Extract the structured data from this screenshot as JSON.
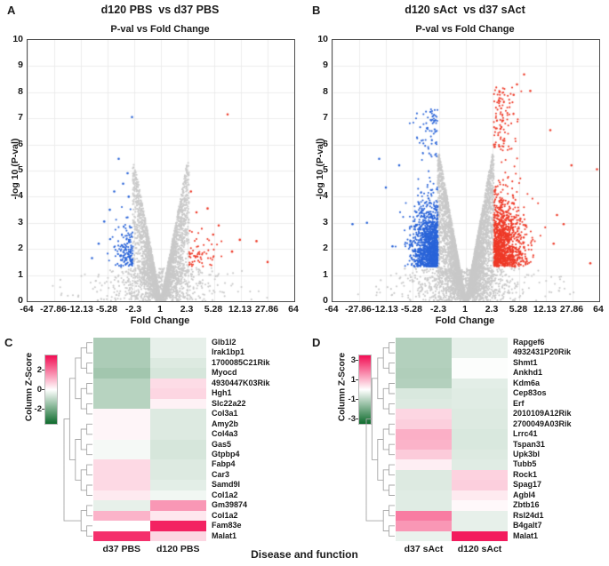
{
  "caption": "Disease and function",
  "colors": {
    "up_points": "#ee3a28",
    "down_points": "#2a64d8",
    "nonsig_points": "#c9c9c9",
    "grid": "#ececec",
    "axis": "#4d4d4d",
    "heat_positive": "#f20d53",
    "heat_zero": "#ffffff",
    "heat_negative": "#0e6b2d",
    "dendrogram": "#a6a6a6"
  },
  "chart_data": [
    {
      "type": "scatter",
      "panel_letter": "A",
      "title": "d120 PBS  vs d37 PBS",
      "subtitle": "P-val vs Fold Change",
      "xlabel": "Fold Change",
      "ylabel": "-log 10 (P-val)",
      "x_tick_labels": [
        "-64",
        "-27.86",
        "-12.13",
        "-5.28",
        "-2.3",
        "1",
        "2.3",
        "5.28",
        "12.13",
        "27.86",
        "64"
      ],
      "x_axis_note": "symmetric log2 fold-change scale, log2 range -6..6",
      "y_ticks": [
        0,
        1,
        2,
        3,
        4,
        5,
        6,
        7,
        8,
        9,
        10
      ],
      "ylim": [
        0,
        10
      ],
      "grid": true,
      "seed": 11,
      "gray": {
        "n_wedge": 3000,
        "n_base": 650,
        "n_far": 40,
        "slope": 4.5,
        "cap": 5.3
      },
      "down": {
        "n": 150,
        "x_sigma": 0.42,
        "y_sigma": 0.85,
        "y_cap": 4.3,
        "n_upper": 0,
        "upper_y": [
          0,
          0
        ],
        "outliers": [
          [
            -1.3,
            7.05
          ],
          [
            -1.9,
            5.45
          ],
          [
            -1.5,
            4.9
          ],
          [
            -2.1,
            4.2
          ],
          [
            -2.55,
            3.05
          ],
          [
            -3.1,
            1.65
          ],
          [
            -1.7,
            4.5
          ],
          [
            -2.3,
            3.5
          ],
          [
            -2.8,
            2.2
          ],
          [
            -1.45,
            4.0
          ]
        ]
      },
      "up": {
        "n": 60,
        "x_sigma": 0.6,
        "y_sigma": 0.62,
        "y_cap": 3.2,
        "n_upper": 0,
        "upper_y": [
          0,
          0
        ],
        "outliers": [
          [
            3.0,
            7.15
          ],
          [
            1.35,
            4.2
          ],
          [
            2.1,
            3.55
          ],
          [
            3.55,
            2.35
          ],
          [
            4.3,
            2.3
          ],
          [
            4.8,
            1.5
          ],
          [
            2.6,
            2.9
          ],
          [
            1.6,
            3.4
          ],
          [
            3.2,
            1.9
          ],
          [
            2.35,
            2.55
          ]
        ]
      }
    },
    {
      "type": "scatter",
      "panel_letter": "B",
      "title": "d120 sAct  vs d37 sAct",
      "subtitle": "P-val vs Fold Change",
      "xlabel": "Fold Change",
      "ylabel": "-log 10 (P-val)",
      "x_tick_labels": [
        "-64",
        "-27.86",
        "-12.13",
        "-5.28",
        "-2.3",
        "1",
        "2.3",
        "5.28",
        "12.13",
        "27.86",
        "64"
      ],
      "x_axis_note": "symmetric log2 fold-change scale, log2 range -6..6",
      "y_ticks": [
        0,
        1,
        2,
        3,
        4,
        5,
        6,
        7,
        8,
        9,
        10
      ],
      "ylim": [
        0,
        10
      ],
      "grid": true,
      "seed": 23,
      "gray": {
        "n_wedge": 5200,
        "n_base": 900,
        "n_far": 60,
        "slope": 4.75,
        "cap": 5.65
      },
      "down": {
        "n": 1250,
        "x_sigma": 0.55,
        "y_sigma": 1.15,
        "y_cap": 6.0,
        "n_upper": 70,
        "upper_y": [
          5.5,
          7.35
        ],
        "outliers": [
          [
            -3.9,
            5.45
          ],
          [
            -5.1,
            2.95
          ],
          [
            -4.45,
            3.0
          ],
          [
            -3.6,
            4.35
          ],
          [
            -3.3,
            2.1
          ],
          [
            -3.0,
            5.2
          ]
        ]
      },
      "up": {
        "n": 1150,
        "x_sigma": 0.62,
        "y_sigma": 1.3,
        "y_cap": 6.3,
        "n_upper": 110,
        "upper_y": [
          5.7,
          8.2
        ],
        "outliers": [
          [
            2.62,
            8.68
          ],
          [
            2.3,
            8.3
          ],
          [
            2.9,
            8.05
          ],
          [
            2.15,
            7.9
          ],
          [
            5.9,
            5.05
          ],
          [
            3.95,
            2.2
          ],
          [
            5.6,
            1.45
          ],
          [
            4.4,
            2.95
          ],
          [
            4.1,
            3.3
          ],
          [
            4.75,
            5.2
          ],
          [
            3.8,
            6.55
          ]
        ]
      }
    },
    {
      "type": "heatmap",
      "panel_letter": "C",
      "legend_title": "Column Z-Score",
      "legend_tick_labels": [
        "2",
        "0",
        "-2"
      ],
      "legend_tick_values": [
        2,
        0,
        -2
      ],
      "legend_range": [
        -3.5,
        3.5
      ],
      "columns": [
        "d37 PBS",
        "d120 PBS"
      ],
      "rows": [
        "Glb1l2",
        "Irak1bp1",
        "1700085C21Rik",
        "Myocd",
        "4930447K03Rik",
        "Hgh1",
        "Slc22a22",
        "Col3a1",
        "Amy2b",
        "Col4a3",
        "Gas5",
        "Gtpbp4",
        "Fabp4",
        "Car3",
        "Samd9l",
        "Col1a2",
        "Gm39874",
        "Col1a2",
        "Fam83e",
        "Malat1"
      ],
      "values": [
        [
          -1.2,
          -0.35
        ],
        [
          -1.2,
          -0.35
        ],
        [
          -1.2,
          -0.5
        ],
        [
          -1.35,
          -0.6
        ],
        [
          -1.05,
          0.5
        ],
        [
          -1.05,
          0.6
        ],
        [
          -1.05,
          0.2
        ],
        [
          0.15,
          -0.5
        ],
        [
          0.15,
          -0.5
        ],
        [
          0.15,
          -0.5
        ],
        [
          -0.15,
          -0.6
        ],
        [
          -0.15,
          -0.6
        ],
        [
          0.55,
          -0.5
        ],
        [
          0.55,
          -0.5
        ],
        [
          0.55,
          -0.4
        ],
        [
          0.3,
          -0.2
        ],
        [
          -0.35,
          1.5
        ],
        [
          1.1,
          0.35
        ],
        [
          0.0,
          3.2
        ],
        [
          3.0,
          0.6
        ]
      ]
    },
    {
      "type": "heatmap",
      "panel_letter": "D",
      "legend_title": "Column Z-Score",
      "legend_tick_labels": [
        "3",
        "1",
        "-1",
        "-3"
      ],
      "legend_tick_values": [
        3,
        1,
        -1,
        -3
      ],
      "legend_range": [
        -3.5,
        3.5
      ],
      "columns": [
        "d37 sAct",
        "d120 sAct"
      ],
      "rows": [
        "Rapgef6",
        "4932431P20Rik",
        "Shmt1",
        "Ankhd1",
        "Kdm6a",
        "Cep83os",
        "Erf",
        "2010109A12Rik",
        "2700049A03Rik",
        "Lrrc41",
        "Tspan31",
        "Upk3bl",
        "Tubb5",
        "Rock1",
        "Spag17",
        "Agbl4",
        "Zbtb16",
        "Rsl24d1",
        "B4galt7",
        "Malat1"
      ],
      "values": [
        [
          -1.1,
          -0.35
        ],
        [
          -1.1,
          -0.35
        ],
        [
          -1.1,
          -0.05
        ],
        [
          -1.15,
          -0.05
        ],
        [
          -1.1,
          -0.4
        ],
        [
          -0.55,
          -0.45
        ],
        [
          -0.5,
          -0.45
        ],
        [
          0.6,
          -0.5
        ],
        [
          0.7,
          -0.5
        ],
        [
          1.15,
          -0.55
        ],
        [
          1.1,
          -0.55
        ],
        [
          0.75,
          -0.5
        ],
        [
          0.25,
          -0.45
        ],
        [
          -0.5,
          0.65
        ],
        [
          -0.5,
          0.7
        ],
        [
          -0.45,
          0.3
        ],
        [
          -0.45,
          0.1
        ],
        [
          1.9,
          -0.35
        ],
        [
          1.5,
          -0.35
        ],
        [
          -0.3,
          3.3
        ]
      ]
    }
  ]
}
